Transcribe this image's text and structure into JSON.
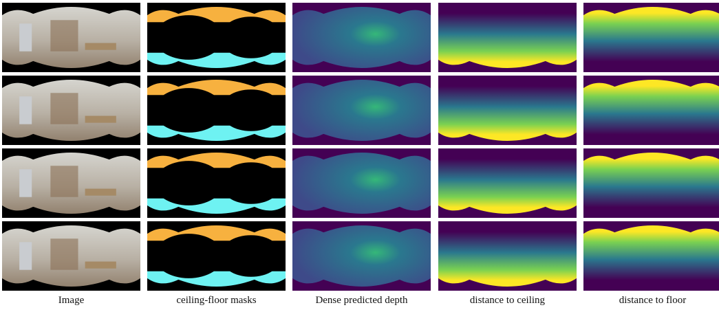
{
  "columns": [
    {
      "caption": "Image"
    },
    {
      "caption": "ceiling-floor masks"
    },
    {
      "caption": "Dense predicted depth"
    },
    {
      "caption": "distance to ceiling"
    },
    {
      "caption": "distance to floor"
    }
  ]
}
